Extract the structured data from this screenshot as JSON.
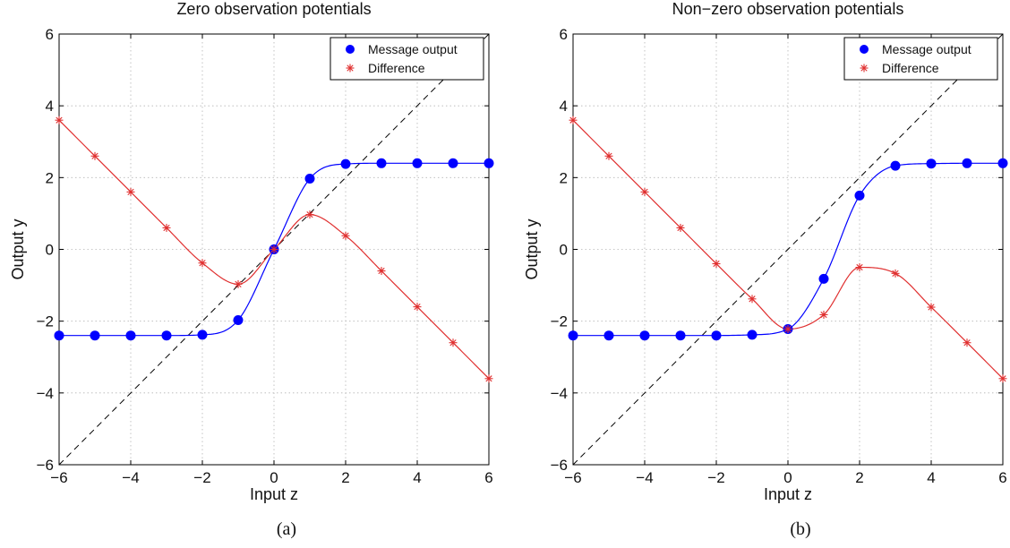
{
  "chart_data": [
    {
      "type": "line",
      "title": "Zero observation potentials",
      "xlabel": "Input z",
      "ylabel": "Output y",
      "caption": "(a)",
      "xlim": [
        -6,
        6
      ],
      "ylim": [
        -6,
        6
      ],
      "x_ticks": [
        "−6",
        "−4",
        "−2",
        "0",
        "2",
        "4",
        "6"
      ],
      "y_ticks": [
        "−6",
        "−4",
        "−2",
        "0",
        "2",
        "4",
        "6"
      ],
      "grid": true,
      "legend_position": "top-right",
      "legend": [
        "Message output",
        "Difference"
      ],
      "reference_line": "y = x (dashed)",
      "series": [
        {
          "name": "Message output",
          "color": "#0000ff",
          "marker": "circle",
          "x": [
            -6,
            -5,
            -4,
            -3,
            -2,
            -1,
            0,
            1,
            2,
            3,
            4,
            5,
            6
          ],
          "y": [
            -2.4,
            -2.4,
            -2.4,
            -2.4,
            -2.38,
            -1.97,
            0,
            1.97,
            2.38,
            2.4,
            2.4,
            2.4,
            2.4
          ]
        },
        {
          "name": "Difference",
          "color": "#e03030",
          "marker": "star",
          "x": [
            -6,
            -5,
            -4,
            -3,
            -2,
            -1,
            0,
            1,
            2,
            3,
            4,
            5,
            6
          ],
          "y": [
            3.6,
            2.6,
            1.6,
            0.6,
            -0.38,
            -0.97,
            0,
            0.97,
            0.38,
            -0.6,
            -1.6,
            -2.6,
            -3.6
          ]
        }
      ]
    },
    {
      "type": "line",
      "title": "Non−zero observation potentials",
      "xlabel": "Input z",
      "ylabel": "Output y",
      "caption": "(b)",
      "xlim": [
        -6,
        6
      ],
      "ylim": [
        -6,
        6
      ],
      "x_ticks": [
        "−6",
        "−4",
        "−2",
        "0",
        "2",
        "4",
        "6"
      ],
      "y_ticks": [
        "−6",
        "−4",
        "−2",
        "0",
        "2",
        "4",
        "6"
      ],
      "grid": true,
      "legend_position": "top-right",
      "legend": [
        "Message output",
        "Difference"
      ],
      "reference_line": "y = x (dashed)",
      "series": [
        {
          "name": "Message output",
          "color": "#0000ff",
          "marker": "circle",
          "x": [
            -6,
            -5,
            -4,
            -3,
            -2,
            -1,
            0,
            1,
            2,
            3,
            4,
            5,
            6
          ],
          "y": [
            -2.4,
            -2.4,
            -2.4,
            -2.4,
            -2.4,
            -2.38,
            -2.22,
            -0.82,
            1.5,
            2.33,
            2.39,
            2.4,
            2.4
          ]
        },
        {
          "name": "Difference",
          "color": "#e03030",
          "marker": "star",
          "x": [
            -6,
            -5,
            -4,
            -3,
            -2,
            -1,
            0,
            1,
            2,
            3,
            4,
            5,
            6
          ],
          "y": [
            3.6,
            2.6,
            1.6,
            0.6,
            -0.4,
            -1.38,
            -2.22,
            -1.82,
            -0.5,
            -0.67,
            -1.61,
            -2.6,
            -3.6
          ]
        }
      ]
    }
  ]
}
